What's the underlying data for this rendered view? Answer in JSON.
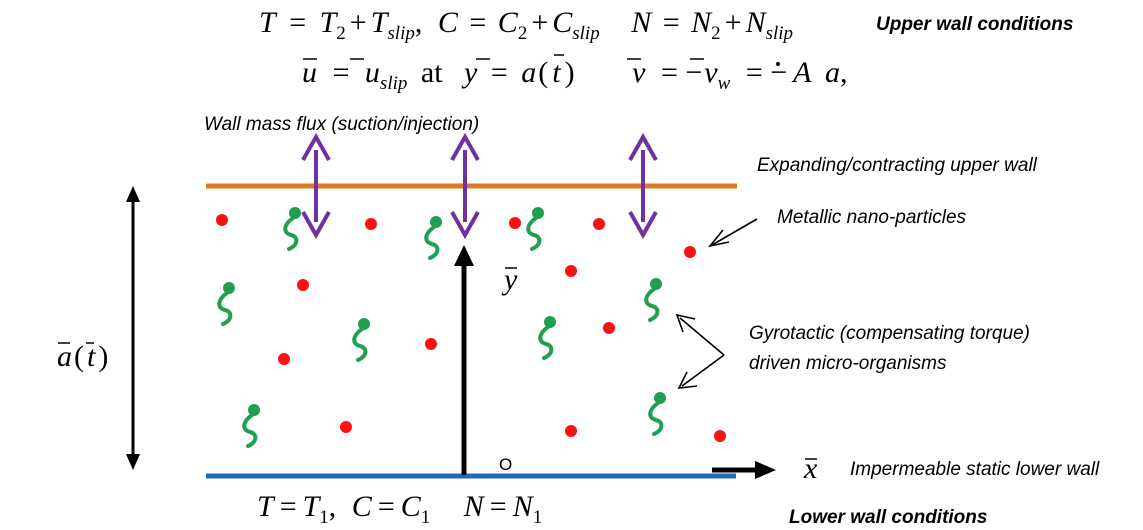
{
  "upper_wall_conditions": {
    "heading": "Upper wall conditions",
    "eq_T": {
      "lhs": "T",
      "rhs": "T",
      "sub1": "2",
      "plus": "T",
      "sub2": "slip"
    },
    "eq_C": {
      "lhs": "C",
      "rhs": "C",
      "sub1": "2",
      "plus": "C",
      "sub2": "slip"
    },
    "eq_N": {
      "lhs": "N",
      "rhs": "N",
      "sub1": "2",
      "plus": "N",
      "sub2": "slip"
    },
    "eq_u": {
      "lhs": "u",
      "rhs": "u",
      "sub": "slip",
      "at": "at",
      "y": "y",
      "a": "a",
      "t": "t"
    },
    "eq_v": {
      "lhs": "v",
      "rhs": "v",
      "sub": "w",
      "A": "A",
      "adot": "a"
    }
  },
  "lower_wall_conditions": {
    "heading": "Lower wall conditions",
    "eq_T": {
      "lhs": "T",
      "rhs": "T",
      "sub": "1"
    },
    "eq_C": {
      "lhs": "C",
      "rhs": "C",
      "sub": "1"
    },
    "eq_N": {
      "lhs": "N",
      "rhs": "N",
      "sub": "1"
    }
  },
  "labels": {
    "wall_mass_flux": "Wall mass flux (suction/injection)",
    "upper_wall": "Expanding/contracting upper wall",
    "nanoparticles": "Metallic nano-particles",
    "gyrotactic_line1": "Gyrotactic (compensating torque)",
    "gyrotactic_line2": "driven micro-organisms",
    "lower_wall": "Impermeable static lower wall",
    "origin": "O"
  },
  "axes": {
    "y": "y",
    "x": "x",
    "height_a": "a",
    "height_t": "t"
  },
  "colors": {
    "upper_wall": "#E07A1F",
    "lower_wall": "#1F6BB5",
    "flux_arrow": "#7030A0",
    "nanoparticle": "#FF1010",
    "microorganism": "#1FA050",
    "axis": "#000000"
  },
  "icons": {
    "nanoparticle": "red-dot",
    "microorganism": "green-swimmer"
  }
}
